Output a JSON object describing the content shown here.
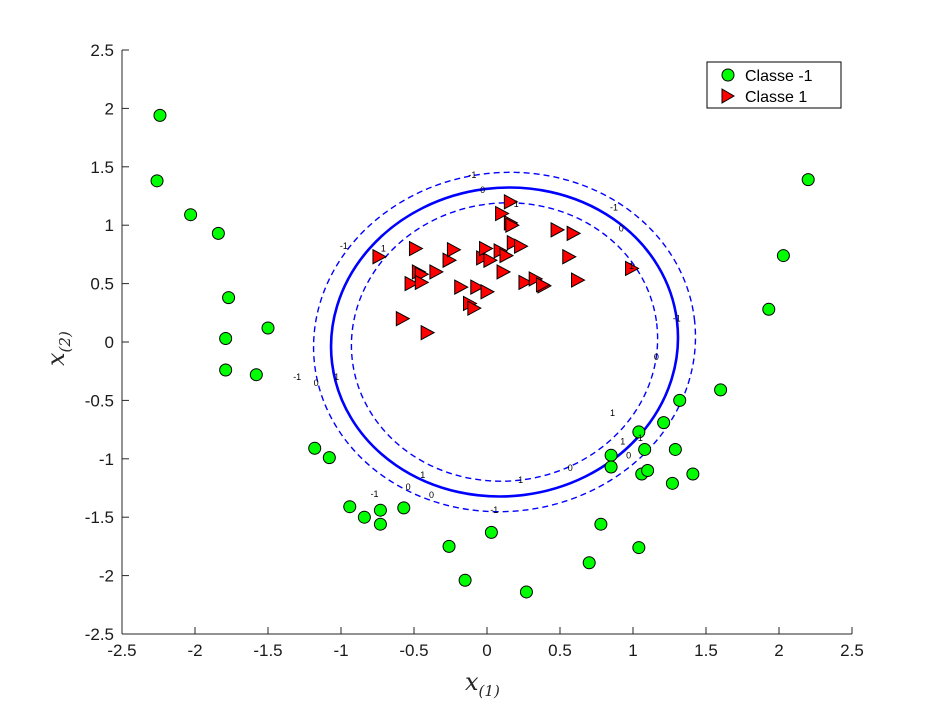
{
  "chart_data": {
    "type": "scatter",
    "title": "",
    "xlabel": "x",
    "xlabel_subscript": "(1)",
    "ylabel": "x",
    "ylabel_subscript": "(2)",
    "xlim": [
      -2.5,
      2.5
    ],
    "ylim": [
      -2.5,
      2.5
    ],
    "xticks": [
      -2.5,
      -2,
      -1.5,
      -1,
      -0.5,
      0,
      0.5,
      1,
      1.5,
      2,
      2.5
    ],
    "yticks": [
      -2.5,
      -2,
      -1.5,
      -1,
      -0.5,
      0,
      0.5,
      1,
      1.5,
      2,
      2.5
    ],
    "xtick_labels": [
      "-2.5",
      "-2",
      "-1.5",
      "-1",
      "-0.5",
      "0",
      "0.5",
      "1",
      "1.5",
      "2",
      "2.5"
    ],
    "ytick_labels": [
      "-2.5",
      "-2",
      "-1.5",
      "-1",
      "-0.5",
      "0",
      "0.5",
      "1",
      "1.5",
      "2",
      "2.5"
    ],
    "grid": false,
    "legend_position": "top-right",
    "series": [
      {
        "name": "Classe -1",
        "marker": "circle",
        "color": "#00ff00",
        "points": [
          [
            -2.24,
            1.94
          ],
          [
            -2.26,
            1.38
          ],
          [
            -2.03,
            1.09
          ],
          [
            -1.84,
            0.93
          ],
          [
            -1.77,
            0.38
          ],
          [
            -1.79,
            0.03
          ],
          [
            -1.5,
            0.12
          ],
          [
            -1.79,
            -0.24
          ],
          [
            -1.58,
            -0.28
          ],
          [
            -1.18,
            -0.91
          ],
          [
            -1.08,
            -0.99
          ],
          [
            -0.94,
            -1.41
          ],
          [
            -0.84,
            -1.5
          ],
          [
            -0.73,
            -1.44
          ],
          [
            -0.73,
            -1.56
          ],
          [
            -0.57,
            -1.42
          ],
          [
            -0.26,
            -1.75
          ],
          [
            -0.15,
            -2.04
          ],
          [
            0.03,
            -1.63
          ],
          [
            0.27,
            -2.14
          ],
          [
            0.7,
            -1.89
          ],
          [
            0.78,
            -1.56
          ],
          [
            0.85,
            -0.97
          ],
          [
            0.85,
            -1.07
          ],
          [
            1.04,
            -0.77
          ],
          [
            1.06,
            -1.13
          ],
          [
            1.08,
            -0.92
          ],
          [
            1.1,
            -1.1
          ],
          [
            1.04,
            -1.76
          ],
          [
            1.21,
            -0.69
          ],
          [
            1.27,
            -1.21
          ],
          [
            1.29,
            -0.92
          ],
          [
            1.32,
            -0.5
          ],
          [
            1.41,
            -1.13
          ],
          [
            1.6,
            -0.41
          ],
          [
            1.93,
            0.28
          ],
          [
            2.03,
            0.74
          ],
          [
            2.2,
            1.39
          ]
        ]
      },
      {
        "name": "Classe 1",
        "marker": "triangle-right",
        "color": "#ff0000",
        "points": [
          [
            -0.74,
            0.73
          ],
          [
            -0.58,
            0.2
          ],
          [
            -0.52,
            0.5
          ],
          [
            -0.49,
            0.8
          ],
          [
            -0.47,
            0.6
          ],
          [
            -0.45,
            0.58
          ],
          [
            -0.45,
            0.51
          ],
          [
            -0.41,
            0.08
          ],
          [
            -0.35,
            0.6
          ],
          [
            -0.26,
            0.7
          ],
          [
            -0.23,
            0.79
          ],
          [
            -0.18,
            0.47
          ],
          [
            -0.12,
            0.33
          ],
          [
            -0.09,
            0.29
          ],
          [
            -0.07,
            0.47
          ],
          [
            -0.03,
            0.72
          ],
          [
            -0.01,
            0.8
          ],
          [
            0.0,
            0.43
          ],
          [
            0.02,
            0.7
          ],
          [
            0.09,
            0.78
          ],
          [
            0.1,
            1.1
          ],
          [
            0.11,
            0.6
          ],
          [
            0.13,
            0.74
          ],
          [
            0.16,
            1.2
          ],
          [
            0.16,
            1.02
          ],
          [
            0.17,
            1.0
          ],
          [
            0.18,
            0.85
          ],
          [
            0.23,
            0.82
          ],
          [
            0.26,
            0.51
          ],
          [
            0.33,
            0.54
          ],
          [
            0.39,
            0.48
          ],
          [
            0.38,
            0.49
          ],
          [
            0.48,
            0.96
          ],
          [
            0.56,
            0.73
          ],
          [
            0.59,
            0.93
          ],
          [
            0.62,
            0.53
          ],
          [
            0.99,
            0.63
          ]
        ]
      }
    ],
    "contours": [
      {
        "level": "0",
        "style": "solid",
        "color": "#0000ff",
        "cx": 0.12,
        "cy": 0.0,
        "rx": 1.19,
        "ry": 1.32,
        "rotation_deg": -7
      },
      {
        "level": "1",
        "style": "dashed",
        "color": "#0000ff",
        "cx": 0.12,
        "cy": 0.0,
        "rx": 1.05,
        "ry": 1.19,
        "rotation_deg": -7
      },
      {
        "level": "-1",
        "style": "dashed",
        "color": "#0000ff",
        "cx": 0.12,
        "cy": 0.0,
        "rx": 1.31,
        "ry": 1.45,
        "rotation_deg": -7
      }
    ],
    "contour_labels": [
      {
        "text": "-1",
        "x": -0.1,
        "y": 1.43
      },
      {
        "text": "0",
        "x": -0.03,
        "y": 1.3
      },
      {
        "text": "1",
        "x": 0.2,
        "y": 1.18
      },
      {
        "text": "-1",
        "x": 0.87,
        "y": 1.15
      },
      {
        "text": "0",
        "x": 0.92,
        "y": 0.97
      },
      {
        "text": "1",
        "x": 0.99,
        "y": 0.65
      },
      {
        "text": "-1",
        "x": -0.98,
        "y": 0.82
      },
      {
        "text": "1",
        "x": -0.71,
        "y": 0.8
      },
      {
        "text": "-1",
        "x": 1.3,
        "y": 0.2
      },
      {
        "text": "0",
        "x": 1.16,
        "y": -0.13
      },
      {
        "text": "1",
        "x": 0.86,
        "y": -0.61
      },
      {
        "text": "1",
        "x": 0.93,
        "y": -0.85
      },
      {
        "text": "-1",
        "x": 1.04,
        "y": -0.82
      },
      {
        "text": "0",
        "x": 0.97,
        "y": -0.97
      },
      {
        "text": "-1",
        "x": -1.3,
        "y": -0.3
      },
      {
        "text": "0",
        "x": -1.17,
        "y": -0.35
      },
      {
        "text": "1",
        "x": -1.03,
        "y": -0.3
      },
      {
        "text": "1",
        "x": -0.44,
        "y": -1.14
      },
      {
        "text": "0",
        "x": 0.57,
        "y": -1.08
      },
      {
        "text": "1",
        "x": 0.23,
        "y": -1.18
      },
      {
        "text": "-1",
        "x": -0.77,
        "y": -1.3
      },
      {
        "text": "0",
        "x": -0.54,
        "y": -1.24
      },
      {
        "text": "0",
        "x": -0.38,
        "y": -1.31
      },
      {
        "text": "-1",
        "x": 0.05,
        "y": -1.44
      }
    ]
  }
}
